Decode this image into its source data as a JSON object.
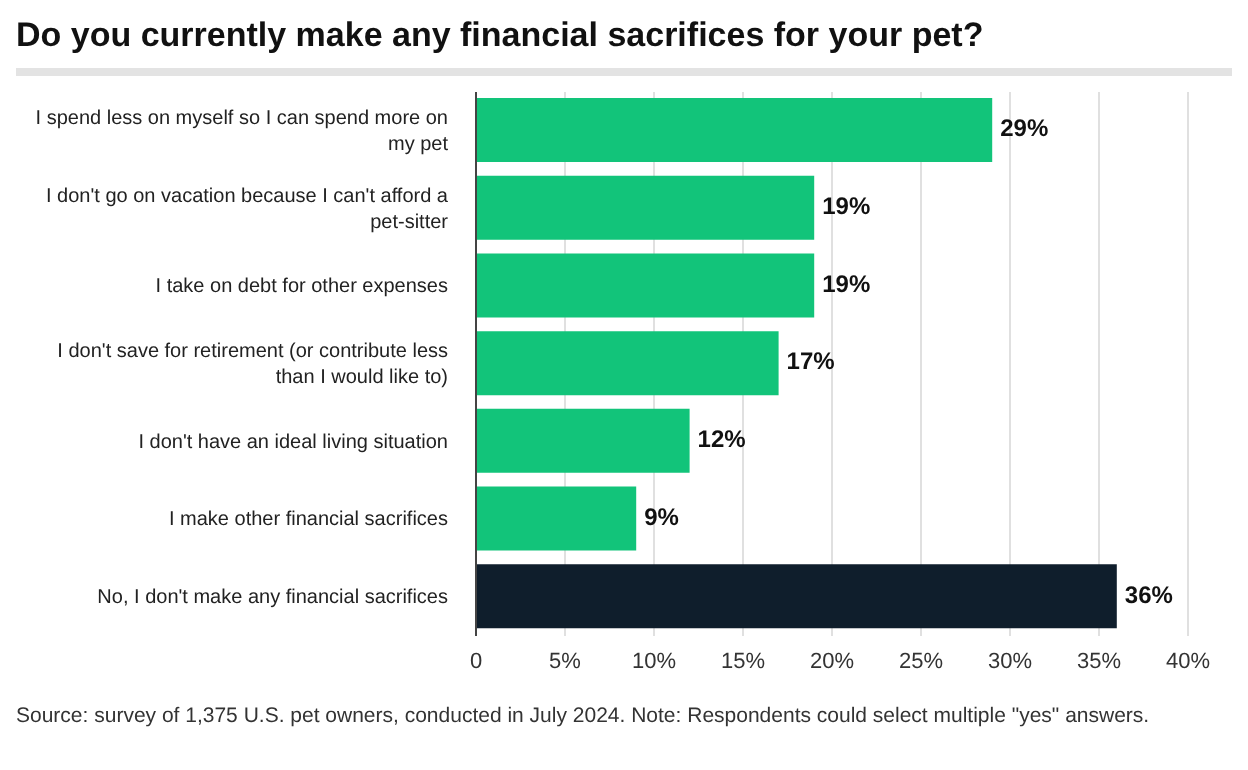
{
  "chart_data": {
    "type": "bar",
    "orientation": "horizontal",
    "title": "Do you currently make any financial sacrifices for your pet?",
    "categories": [
      "I spend less on myself so I can spend more on my pet",
      "I don't go on vacation because I can't afford a pet-sitter",
      "I take on debt for other expenses",
      "I don't save for retirement (or contribute less than I would like to)",
      "I don't have an ideal living situation",
      "I make other financial sacrifices",
      "No, I don't make any financial sacrifices"
    ],
    "values": [
      29,
      19,
      19,
      17,
      12,
      9,
      36
    ],
    "colors": [
      "#12c47a",
      "#12c47a",
      "#12c47a",
      "#12c47a",
      "#12c47a",
      "#12c47a",
      "#0f1e2c"
    ],
    "value_labels": [
      "29%",
      "19%",
      "19%",
      "17%",
      "12%",
      "9%",
      "36%"
    ],
    "xlim": [
      0,
      40
    ],
    "xticks": [
      0,
      {
        "value": 5,
        "label": "5%"
      },
      {
        "value": 10,
        "label": "10%"
      },
      {
        "value": 15,
        "label": "15%"
      },
      {
        "value": 20,
        "label": "20%"
      },
      {
        "value": 25,
        "label": "25%"
      },
      {
        "value": 30,
        "label": "30%"
      },
      {
        "value": 35,
        "label": "35%"
      },
      {
        "value": 40,
        "label": "40%"
      }
    ],
    "grid": "x",
    "annotations": [
      "Source: survey of 1,375 U.S. pet owners, conducted in July 2024. Note: Respondents could select multiple \"yes\" answers."
    ]
  }
}
